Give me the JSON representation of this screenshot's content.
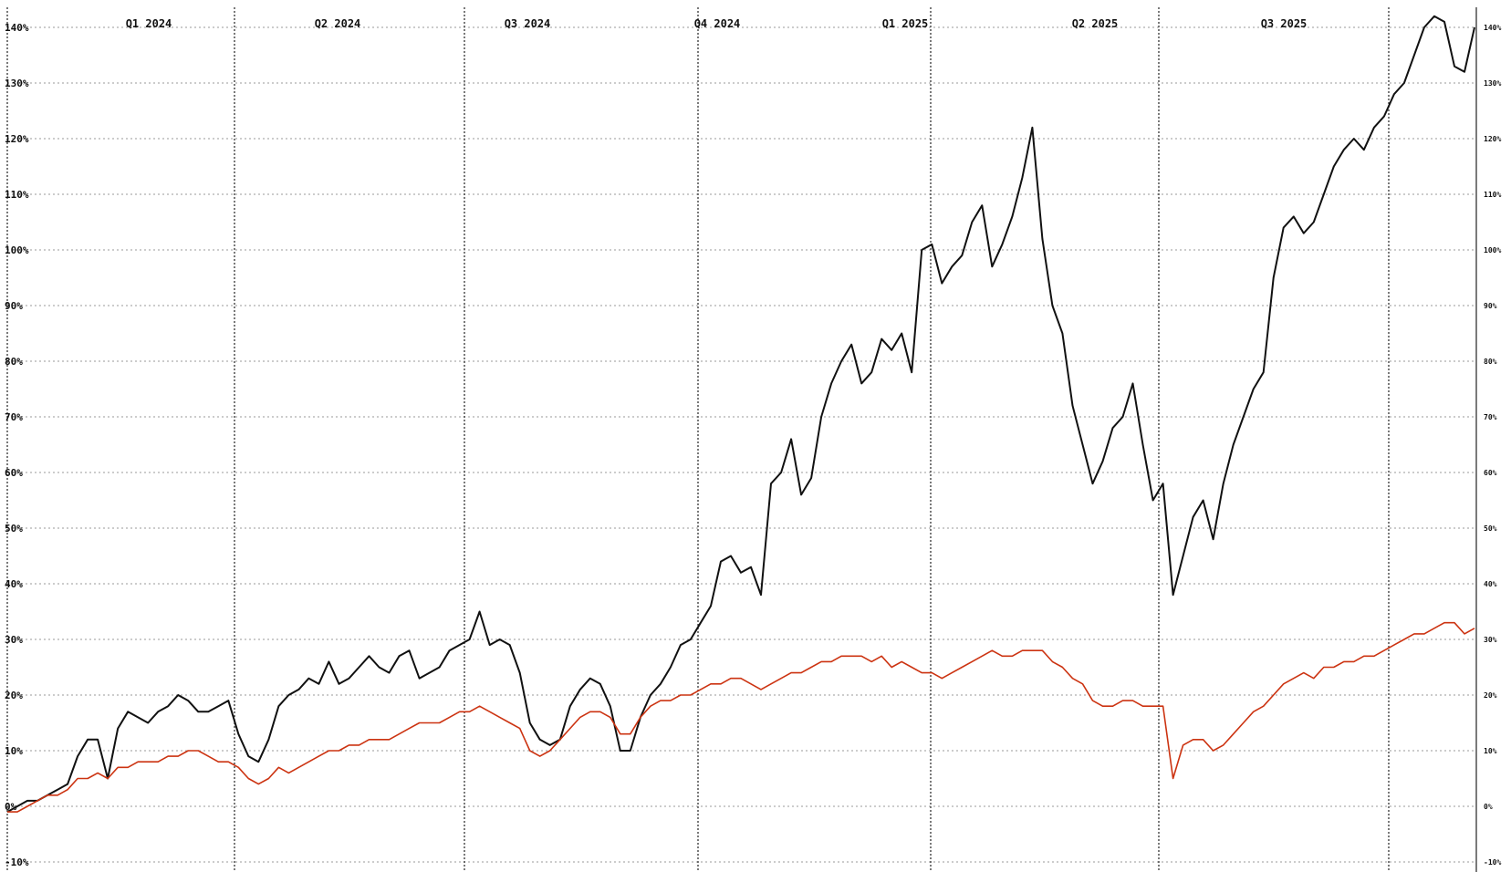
{
  "chart_data": {
    "type": "line",
    "title": "",
    "xlabel": "",
    "ylabel": "",
    "ylim": [
      -10,
      145
    ],
    "grid": true,
    "y_tick_labels": [
      "140%",
      "130%",
      "120%",
      "110%",
      "100%",
      "90%",
      "80%",
      "70%",
      "60%",
      "50%",
      "40%",
      "30%",
      "20%",
      "10%",
      "0%",
      "-10%"
    ],
    "y_tick_values": [
      140,
      130,
      120,
      110,
      100,
      90,
      80,
      70,
      60,
      50,
      40,
      30,
      20,
      10,
      0,
      -10
    ],
    "quarters": [
      "Q1 2024",
      "Q2 2024",
      "Q3 2024",
      "Q4 2024",
      "Q1 2025",
      "Q2 2025",
      "Q3 2025"
    ],
    "series": [
      {
        "color": "#111111",
        "values": [
          -1,
          0,
          1,
          1,
          2,
          3,
          4,
          9,
          12,
          12,
          5,
          14,
          17,
          16,
          15,
          17,
          18,
          20,
          19,
          17,
          17,
          18,
          19,
          13,
          9,
          8,
          12,
          18,
          20,
          21,
          23,
          22,
          26,
          22,
          23,
          25,
          27,
          25,
          24,
          27,
          28,
          23,
          24,
          25,
          28,
          29,
          30,
          35,
          29,
          30,
          29,
          24,
          15,
          12,
          11,
          12,
          18,
          21,
          23,
          22,
          18,
          10,
          10,
          16,
          20,
          22,
          25,
          29,
          30,
          33,
          36,
          44,
          45,
          42,
          43,
          38,
          58,
          60,
          66,
          56,
          59,
          70,
          76,
          80,
          83,
          76,
          78,
          84,
          82,
          85,
          78,
          100,
          101,
          94,
          97,
          99,
          105,
          108,
          97,
          101,
          106,
          113,
          122,
          102,
          90,
          85,
          72,
          65,
          58,
          62,
          68,
          70,
          76,
          65,
          55,
          58,
          38,
          45,
          52,
          55,
          48,
          58,
          65,
          70,
          75,
          78,
          95,
          104,
          106,
          103,
          105,
          110,
          115,
          118,
          120,
          118,
          122,
          124,
          128,
          130,
          135,
          140,
          142,
          141,
          133,
          132,
          140
        ]
      },
      {
        "color": "#cc3311",
        "values": [
          -1,
          -1,
          0,
          1,
          2,
          2,
          3,
          5,
          5,
          6,
          5,
          7,
          7,
          8,
          8,
          8,
          9,
          9,
          10,
          10,
          9,
          8,
          8,
          7,
          5,
          4,
          5,
          7,
          6,
          7,
          8,
          9,
          10,
          10,
          11,
          11,
          12,
          12,
          12,
          13,
          14,
          15,
          15,
          15,
          16,
          17,
          17,
          18,
          17,
          16,
          15,
          14,
          10,
          9,
          10,
          12,
          14,
          16,
          17,
          17,
          16,
          13,
          13,
          16,
          18,
          19,
          19,
          20,
          20,
          21,
          22,
          22,
          23,
          23,
          22,
          21,
          22,
          23,
          24,
          24,
          25,
          26,
          26,
          27,
          27,
          27,
          26,
          27,
          25,
          26,
          25,
          24,
          24,
          23,
          24,
          25,
          26,
          27,
          28,
          27,
          27,
          28,
          28,
          28,
          26,
          25,
          23,
          22,
          19,
          18,
          18,
          19,
          19,
          18,
          18,
          18,
          5,
          11,
          12,
          12,
          10,
          11,
          13,
          15,
          17,
          18,
          20,
          22,
          23,
          24,
          23,
          25,
          25,
          26,
          26,
          27,
          27,
          28,
          29,
          30,
          31,
          31,
          32,
          33,
          33,
          31,
          32
        ]
      }
    ]
  }
}
